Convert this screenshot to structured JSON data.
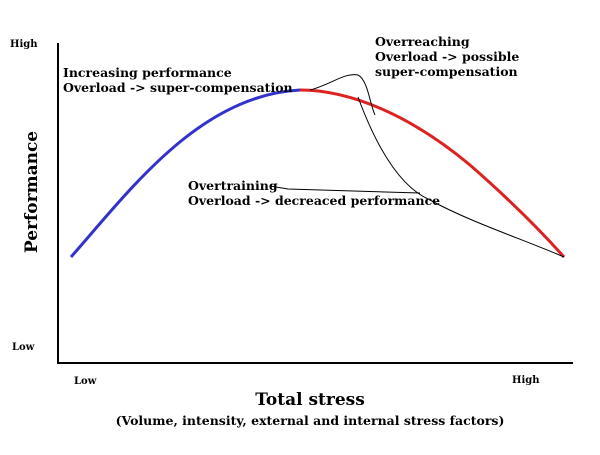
{
  "y_axis": {
    "title": "Performance",
    "high_label": "High",
    "low_label": "Low"
  },
  "x_axis": {
    "title": "Total stress",
    "subtitle": "(Volume, intensity, external and internal stress factors)",
    "low_label": "Low",
    "high_label": "High"
  },
  "annotations": {
    "increasing": {
      "line1": "Increasing performance",
      "line2": "Overload -> super-compensation"
    },
    "overreaching": {
      "line1": "Overreaching",
      "line2": "Overload -> possible",
      "line3": "super-compensation"
    },
    "overtraining": {
      "line1": "Overtraining",
      "line2": "Overload -> decreaced performance"
    }
  },
  "colors": {
    "increasing_curve": "#3333cc",
    "declining_curve": "#dd2222",
    "overreaching_curve": "#000000",
    "overtraining_curve": "#000000",
    "axes": "#000000"
  }
}
